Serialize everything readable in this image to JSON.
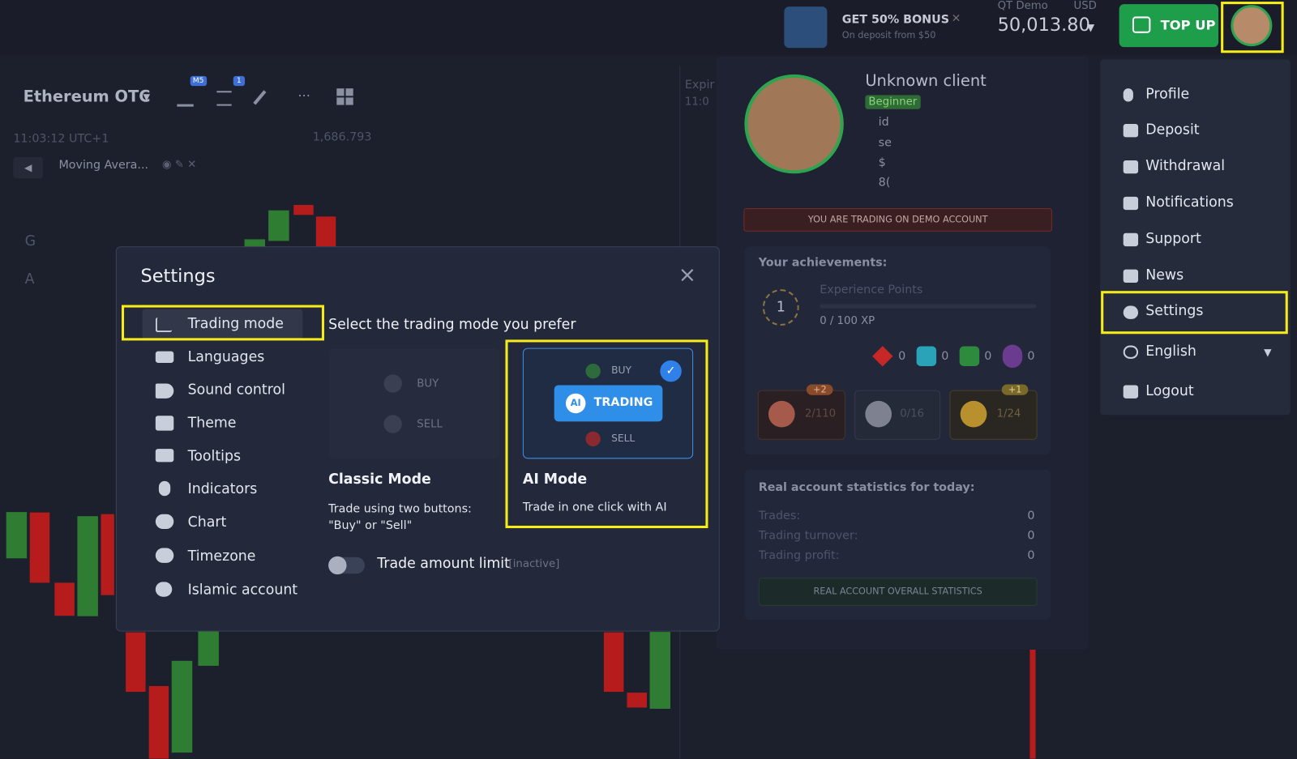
{
  "header": {
    "bonus_title": "GET 50% BONUS",
    "bonus_sub": "On deposit from $50",
    "account_label": "QT Demo",
    "currency": "USD",
    "balance": "50,013.80",
    "top_up": "TOP UP"
  },
  "toolbar": {
    "asset": "Ethereum OTC",
    "badge_timeframe": "M5",
    "badge_count": "1",
    "time": "11:03:12 UTC+1",
    "price": "1,686.793",
    "indicator": "Moving Avera...",
    "expiry": "Expir",
    "expiry_time": "11:0",
    "side_letters": [
      "G",
      "A"
    ]
  },
  "profile": {
    "name": "Unknown client",
    "level": "Beginner",
    "fields": [
      "id",
      "se",
      "$",
      "8("
    ],
    "demo_notice": "YOU ARE TRADING ON DEMO ACCOUNT",
    "achievements_title": "Your achievements:",
    "xp_level": "1",
    "xp_label": "Experience Points",
    "xp_value": "0 / 100 XP",
    "gems": [
      "0",
      "0",
      "0",
      "0"
    ],
    "rewards": [
      {
        "badge": "+2",
        "progress": "2/110"
      },
      {
        "progress": "0/16"
      },
      {
        "badge": "+1",
        "progress": "1/24"
      }
    ],
    "stats_title": "Real account statistics for today:",
    "stats": [
      {
        "label": "Trades:",
        "value": "0"
      },
      {
        "label": "Trading turnover:",
        "value": "0"
      },
      {
        "label": "Trading profit:",
        "value": "0"
      }
    ],
    "stats_button": "REAL ACCOUNT OVERALL STATISTICS"
  },
  "menu": {
    "items": [
      "Profile",
      "Deposit",
      "Withdrawal",
      "Notifications",
      "Support",
      "News",
      "Settings",
      "English",
      "Logout"
    ]
  },
  "settings": {
    "title": "Settings",
    "nav": [
      "Trading mode",
      "Languages",
      "Sound control",
      "Theme",
      "Tooltips",
      "Indicators",
      "Chart",
      "Timezone",
      "Islamic account"
    ],
    "prompt": "Select the trading mode you prefer",
    "classic": {
      "buy": "BUY",
      "sell": "SELL",
      "title": "Classic Mode",
      "description": "Trade using two buttons: \"Buy\" or \"Sell\""
    },
    "ai": {
      "buy": "BUY",
      "icon": "AI",
      "button": "TRADING",
      "sell": "SELL",
      "title": "AI Mode",
      "description": "Trade in one click with AI"
    },
    "limit_label": "Trade amount limit",
    "limit_status": "[inactive]"
  }
}
